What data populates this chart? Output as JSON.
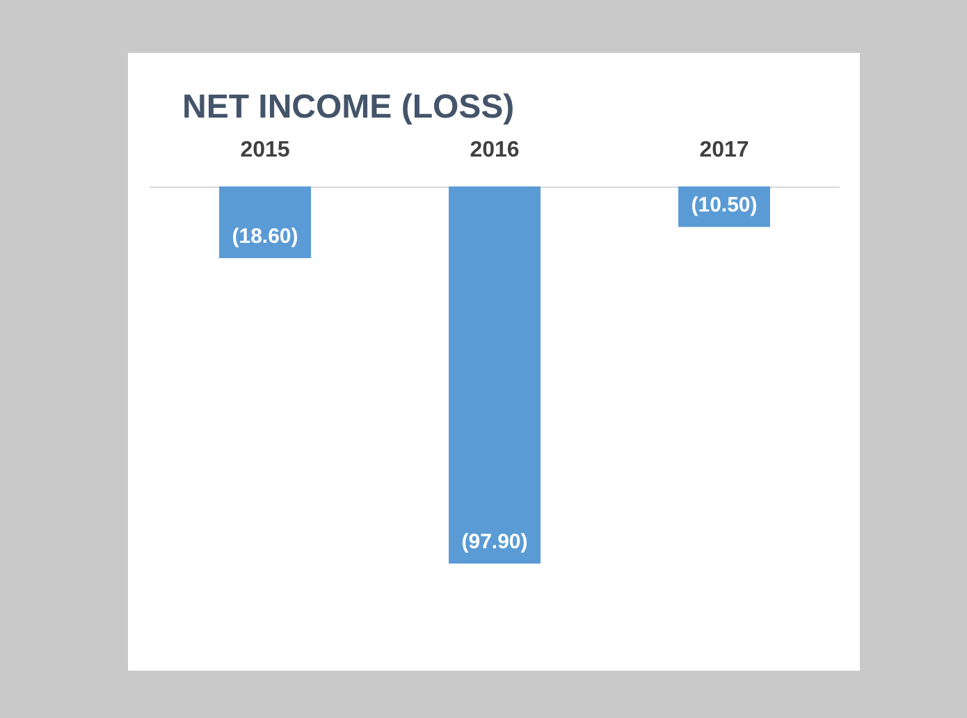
{
  "chart_data": {
    "type": "bar",
    "title": "NET INCOME (LOSS)",
    "categories": [
      "2015",
      "2016",
      "2017"
    ],
    "values": [
      -18.6,
      -97.9,
      -10.5
    ],
    "value_labels": [
      "(18.60)",
      "(97.90)",
      "(10.50)"
    ],
    "color": "#5b9bd5"
  }
}
